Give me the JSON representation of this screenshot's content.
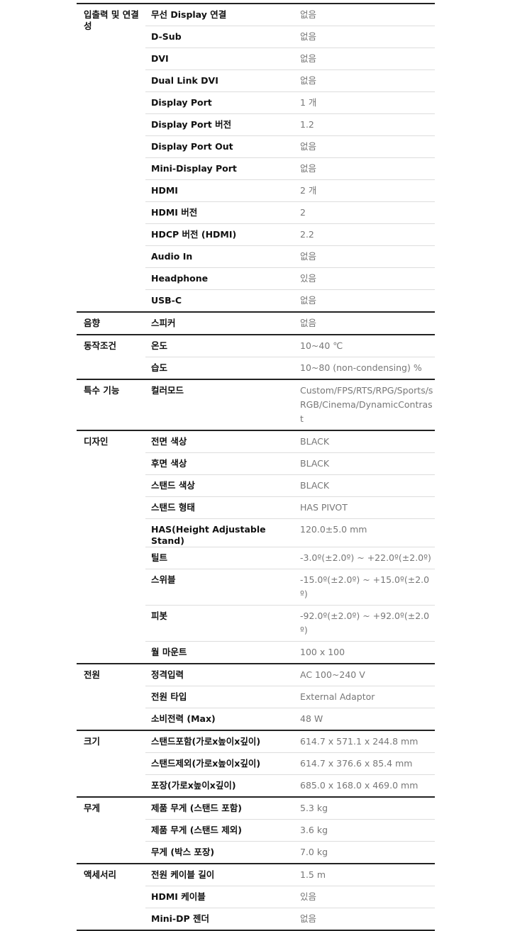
{
  "sections": [
    {
      "category": "입출력 및 연결성",
      "rows": [
        {
          "label": "무선 Display 연결",
          "value": "없음"
        },
        {
          "label": "D-Sub",
          "value": "없음"
        },
        {
          "label": "DVI",
          "value": "없음"
        },
        {
          "label": "Dual Link DVI",
          "value": "없음"
        },
        {
          "label": "Display Port",
          "value": "1 개"
        },
        {
          "label": "Display Port 버전",
          "value": "1.2"
        },
        {
          "label": "Display Port Out",
          "value": "없음"
        },
        {
          "label": "Mini-Display Port",
          "value": "없음"
        },
        {
          "label": "HDMI",
          "value": "2 개"
        },
        {
          "label": "HDMI 버전",
          "value": "2"
        },
        {
          "label": "HDCP 버전 (HDMI)",
          "value": "2.2"
        },
        {
          "label": "Audio In",
          "value": "없음"
        },
        {
          "label": "Headphone",
          "value": "있음"
        },
        {
          "label": "USB-C",
          "value": "없음"
        }
      ]
    },
    {
      "category": "음향",
      "rows": [
        {
          "label": "스피커",
          "value": "없음"
        }
      ]
    },
    {
      "category": "동작조건",
      "rows": [
        {
          "label": "온도",
          "value": "10~40 ℃"
        },
        {
          "label": "습도",
          "value": "10~80 (non-condensing) %"
        }
      ]
    },
    {
      "category": "특수 기능",
      "rows": [
        {
          "label": "컬러모드",
          "value": "Custom/FPS/RTS/RPG/Sports/sRGB/Cinema/DynamicContrast"
        }
      ]
    },
    {
      "category": "디자인",
      "rows": [
        {
          "label": "전면 색상",
          "value": "BLACK"
        },
        {
          "label": "후면 색상",
          "value": "BLACK"
        },
        {
          "label": "스탠드 색상",
          "value": "BLACK"
        },
        {
          "label": "스탠드 형태",
          "value": "HAS PIVOT"
        },
        {
          "label": "HAS(Height Adjustable Stand)",
          "value": "120.0±5.0 mm"
        },
        {
          "label": "틸트",
          "value": "-3.0º(±2.0º) ~ +22.0º(±2.0º)"
        },
        {
          "label": "스위블",
          "value": "-15.0º(±2.0º) ~ +15.0º(±2.0º)"
        },
        {
          "label": "피봇",
          "value": "-92.0º(±2.0º) ~ +92.0º(±2.0º)"
        },
        {
          "label": "월 마운트",
          "value": "100 x 100"
        }
      ]
    },
    {
      "category": "전원",
      "rows": [
        {
          "label": "정격입력",
          "value": "AC 100~240 V"
        },
        {
          "label": "전원 타입",
          "value": "External Adaptor"
        },
        {
          "label": "소비전력 (Max)",
          "value": "48 W"
        }
      ]
    },
    {
      "category": "크기",
      "rows": [
        {
          "label": "스탠드포함(가로x높이x깊이)",
          "value": "614.7 x 571.1 x 244.8 mm"
        },
        {
          "label": "스탠드제외(가로x높이x깊이)",
          "value": "614.7 x 376.6 x 85.4 mm"
        },
        {
          "label": "포장(가로x높이x깊이)",
          "value": "685.0 x 168.0 x 469.0 mm"
        }
      ]
    },
    {
      "category": "무게",
      "rows": [
        {
          "label": "제품 무게 (스탠드 포함)",
          "value": "5.3 kg"
        },
        {
          "label": "제품 무게 (스탠드 제외)",
          "value": "3.6 kg"
        },
        {
          "label": "무게 (박스 포장)",
          "value": "7.0 kg"
        }
      ]
    },
    {
      "category": "액세서리",
      "rows": [
        {
          "label": "전원 케이블 길이",
          "value": "1.5 m"
        },
        {
          "label": "HDMI 케이블",
          "value": "있음"
        },
        {
          "label": "Mini-DP 젠더",
          "value": "없음"
        }
      ]
    }
  ]
}
